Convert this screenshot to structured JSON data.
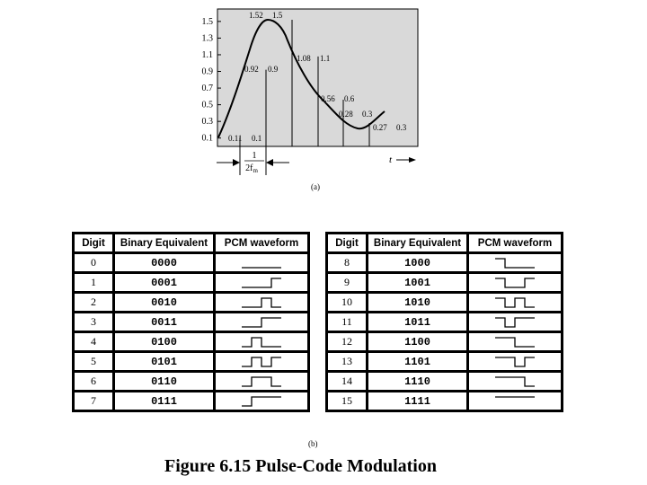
{
  "part_a": {
    "caption": "(a)",
    "y_ticks": [
      "1.5",
      "1.3",
      "1.1",
      "0.9",
      "0.7",
      "0.5",
      "0.3",
      "0.1"
    ],
    "sample_labels": [
      {
        "exact": "0.11",
        "coded": "0.1"
      },
      {
        "exact": "0.92",
        "coded": "0.9"
      },
      {
        "exact": "1.52",
        "coded": "1.5"
      },
      {
        "exact": "1.08",
        "coded": "1.1"
      },
      {
        "exact": "0.56",
        "coded": "0.6"
      },
      {
        "exact": "0.28",
        "coded": "0.3"
      },
      {
        "exact": "0.27",
        "coded": "0.3"
      }
    ],
    "samples": [
      0.11,
      0.92,
      1.52,
      1.08,
      0.56,
      0.28,
      0.27
    ],
    "interval_numerator": "1",
    "interval_denominator": "2f",
    "interval_denominator_sub": "m",
    "time_label": "t",
    "plot_background": "#d9d9d9"
  },
  "part_b": {
    "caption": "(b)",
    "headers": [
      "Digit",
      "Binary Equivalent",
      "PCM waveform"
    ],
    "rows_left": [
      {
        "digit": "0",
        "binary": "0000"
      },
      {
        "digit": "1",
        "binary": "0001"
      },
      {
        "digit": "2",
        "binary": "0010"
      },
      {
        "digit": "3",
        "binary": "0011"
      },
      {
        "digit": "4",
        "binary": "0100"
      },
      {
        "digit": "5",
        "binary": "0101"
      },
      {
        "digit": "6",
        "binary": "0110"
      },
      {
        "digit": "7",
        "binary": "0111"
      }
    ],
    "rows_right": [
      {
        "digit": "8",
        "binary": "1000"
      },
      {
        "digit": "9",
        "binary": "1001"
      },
      {
        "digit": "10",
        "binary": "1010"
      },
      {
        "digit": "11",
        "binary": "1011"
      },
      {
        "digit": "12",
        "binary": "1100"
      },
      {
        "digit": "13",
        "binary": "1101"
      },
      {
        "digit": "14",
        "binary": "1110"
      },
      {
        "digit": "15",
        "binary": "1111"
      }
    ]
  },
  "figure_title": "Figure 6.15  Pulse-Code Modulation"
}
